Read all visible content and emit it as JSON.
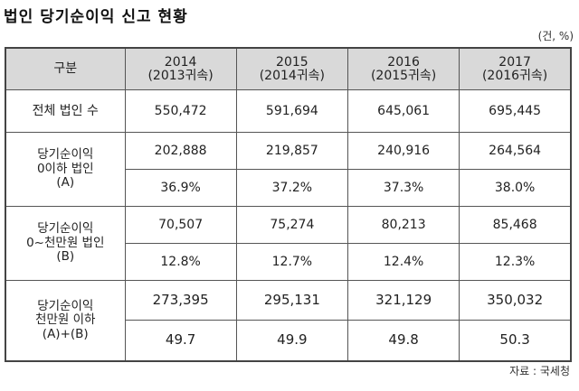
{
  "title": "법인 당기순이익 신고 현황",
  "unit": "(건, %)",
  "header": {
    "label": "구분",
    "years": [
      {
        "year": "2014",
        "sub": "(2013귀속)"
      },
      {
        "year": "2015",
        "sub": "(2014귀속)"
      },
      {
        "year": "2016",
        "sub": "(2015귀속)"
      },
      {
        "year": "2017",
        "sub": "(2016귀속)"
      }
    ]
  },
  "rows": {
    "total": {
      "label": "전체 법인 수",
      "values": [
        "550,472",
        "591,694",
        "645,061",
        "695,445"
      ]
    },
    "a": {
      "label": [
        "당기순이익",
        "0이하 법인",
        "(A)"
      ],
      "counts": [
        "202,888",
        "219,857",
        "240,916",
        "264,564"
      ],
      "ratios": [
        "36.9%",
        "37.2%",
        "37.3%",
        "38.0%"
      ]
    },
    "b": {
      "label": [
        "당기순이익",
        "0~천만원 법인",
        "(B)"
      ],
      "counts": [
        "70,507",
        "75,274",
        "80,213",
        "85,468"
      ],
      "ratios": [
        "12.8%",
        "12.7%",
        "12.4%",
        "12.3%"
      ]
    },
    "ab": {
      "label": [
        "당기순이익",
        "천만원 이하",
        "(A)+(B)"
      ],
      "counts": [
        "273,395",
        "295,131",
        "321,129",
        "350,032"
      ],
      "ratios": [
        "49.7",
        "49.9",
        "49.8",
        "50.3"
      ]
    }
  },
  "source": "자료 : 국세청"
}
